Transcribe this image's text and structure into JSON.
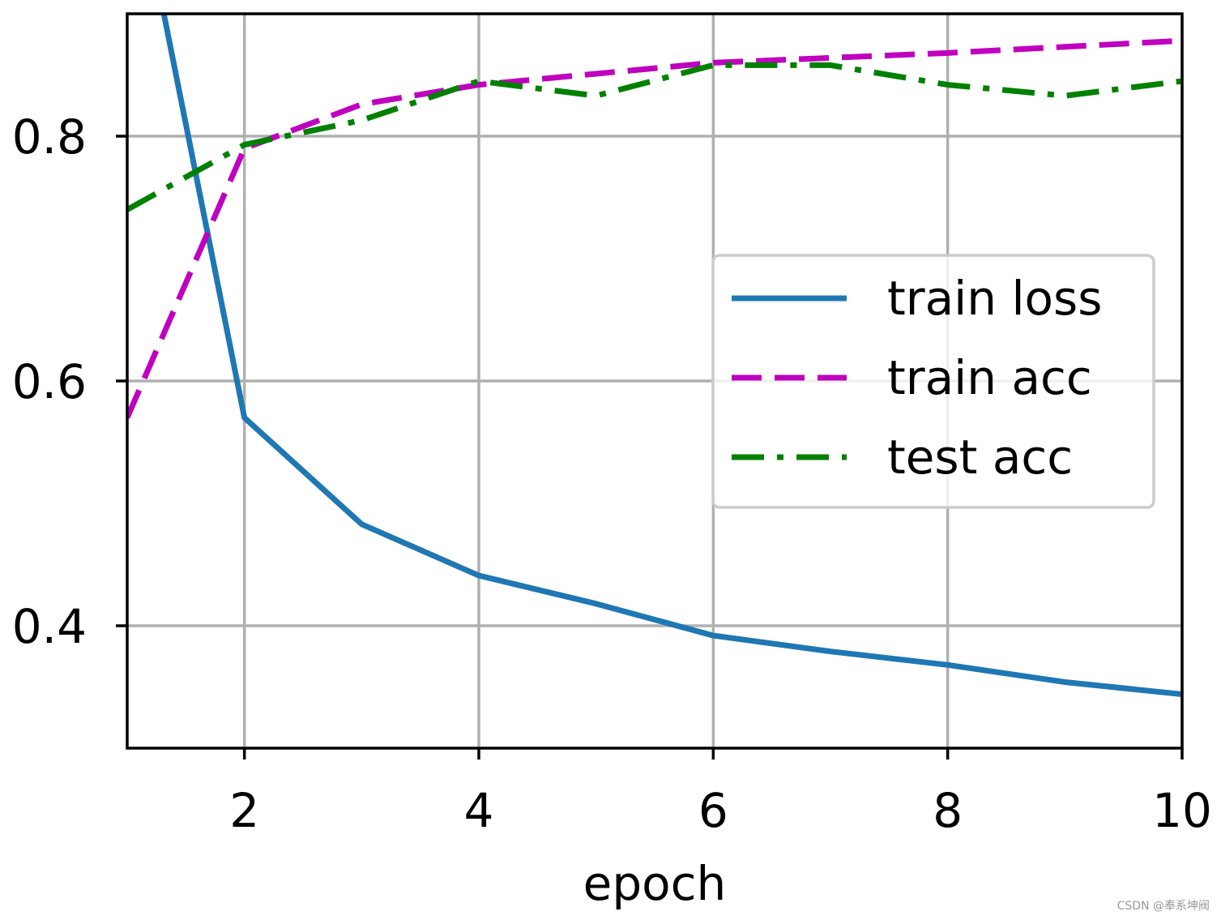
{
  "chart_data": {
    "type": "line",
    "xlabel": "epoch",
    "ylabel": "",
    "title": "",
    "xlim": [
      1,
      10
    ],
    "ylim": [
      0.3,
      0.9
    ],
    "xticks": [
      2,
      4,
      6,
      8,
      10
    ],
    "yticks": [
      0.4,
      0.6,
      0.8
    ],
    "grid": true,
    "legend_position": "center-right",
    "x": [
      1,
      2,
      3,
      4,
      5,
      6,
      7,
      8,
      9,
      10
    ],
    "series": [
      {
        "name": "train loss",
        "color": "#1f77b4",
        "style": "solid",
        "values": [
          1.05,
          0.57,
          0.483,
          0.441,
          0.418,
          0.392,
          0.379,
          0.368,
          0.354,
          0.344
        ]
      },
      {
        "name": "train acc",
        "color": "#bf00bf",
        "style": "dashed",
        "values": [
          0.57,
          0.79,
          0.826,
          0.842,
          0.851,
          0.86,
          0.864,
          0.868,
          0.873,
          0.878
        ]
      },
      {
        "name": "test acc",
        "color": "#008000",
        "style": "dashdot",
        "values": [
          0.74,
          0.793,
          0.813,
          0.845,
          0.833,
          0.858,
          0.858,
          0.842,
          0.833,
          0.845
        ]
      }
    ]
  },
  "watermark": "CSDN @奉系坤阀"
}
